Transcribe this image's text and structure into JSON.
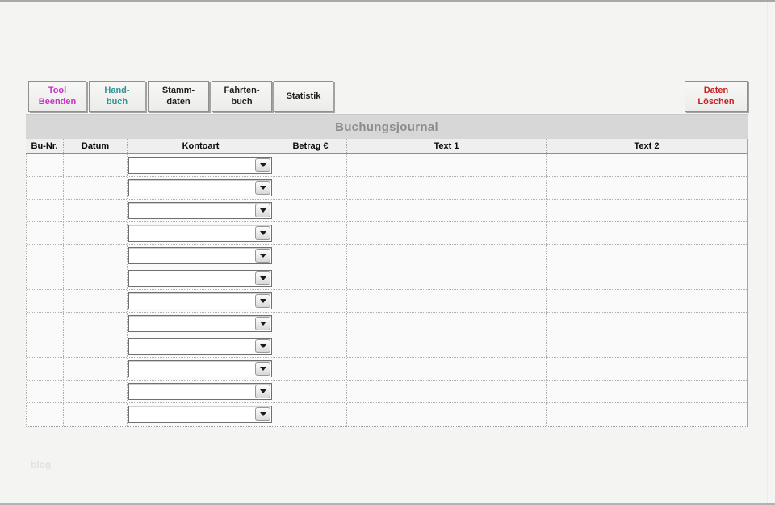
{
  "title_bar": {
    "title": "Buchungsjournal"
  },
  "toolbar": {
    "buttons": [
      {
        "id": "tool-beenden",
        "label": "Tool\nBeenden",
        "color": "#c433c4"
      },
      {
        "id": "handbuch",
        "label": "Hand-\nbuch",
        "color": "#2e9494"
      },
      {
        "id": "stammdaten",
        "label": "Stamm-\ndaten",
        "color": "#1f1f1f"
      },
      {
        "id": "fahrtenbuch",
        "label": "Fahrten-\nbuch",
        "color": "#1f1f1f"
      },
      {
        "id": "statistik",
        "label": "Statistik",
        "color": "#1f1f1f"
      },
      {
        "id": "daten-loeschen",
        "label": "Daten\nLöschen",
        "color": "#cc2020"
      }
    ]
  },
  "table": {
    "headers": [
      "Bu-Nr.",
      "Datum",
      "Kontoart",
      "Betrag €",
      "Text 1",
      "Text 2"
    ],
    "row_count": 12,
    "kontoart_dropdown": {
      "selected_value": ""
    }
  },
  "watermark": {
    "text": "blog"
  },
  "colors": {
    "title_text": "#8c8c8c",
    "title_bar_bg": "#d7d7d7",
    "header_bg": "#efefef",
    "body_bg": "#fafafa",
    "page_bg": "#f4f4f3"
  }
}
